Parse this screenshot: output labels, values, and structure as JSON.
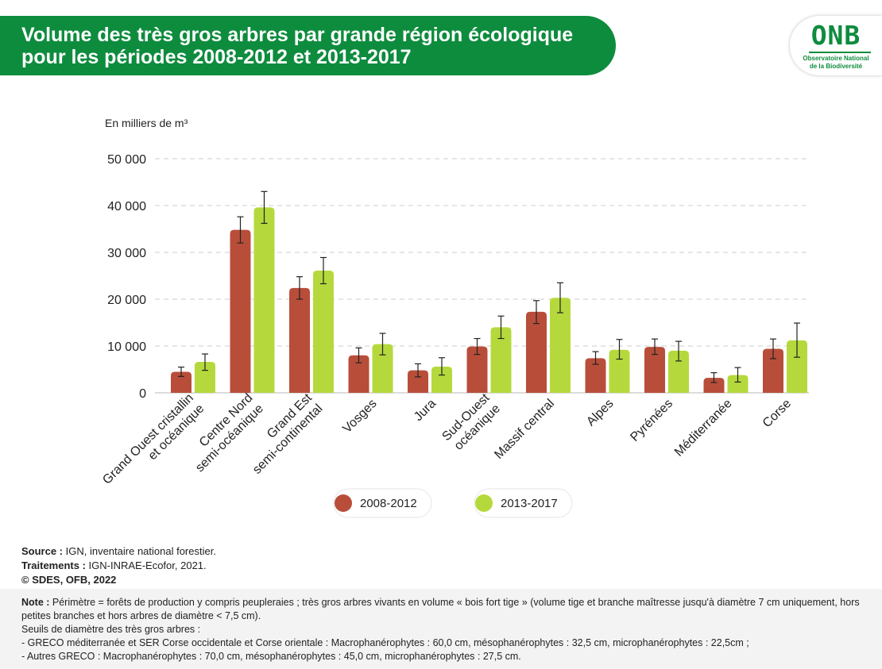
{
  "header": {
    "title_line1": "Volume des très gros arbres par grande région écologique",
    "title_line2": "pour les périodes 2008-2012 et 2013-2017",
    "logo_main": "ONB",
    "logo_sub1": "Observatoire National",
    "logo_sub2": "de la Biodiversité"
  },
  "colors": {
    "banner": "#0e8c3e",
    "series_2008": "#b84e3a",
    "series_2013": "#b5d93c"
  },
  "chart_data": {
    "type": "bar",
    "title": "Volume des très gros arbres par grande région écologique pour les périodes 2008-2012 et 2013-2017",
    "ylabel": "En milliers de m³",
    "xlabel": "",
    "ylim": [
      0,
      50000
    ],
    "yticks": [
      0,
      10000,
      20000,
      30000,
      40000,
      50000
    ],
    "ytick_labels": [
      "0",
      "10 000",
      "20 000",
      "30 000",
      "40 000",
      "50 000"
    ],
    "grid": true,
    "legend_position": "bottom",
    "categories": [
      [
        "Grand Ouest cristallin",
        "et océanique"
      ],
      [
        "Centre Nord",
        "semi-océanique"
      ],
      [
        "Grand Est",
        "semi-continental"
      ],
      [
        "Vosges"
      ],
      [
        "Jura"
      ],
      [
        "Sud-Ouest",
        "océanique"
      ],
      [
        "Massif central"
      ],
      [
        "Alpes"
      ],
      [
        "Pyrénées"
      ],
      [
        "Méditerranée"
      ],
      [
        "Corse"
      ]
    ],
    "series": [
      {
        "name": "2008-2012",
        "color": "#b84e3a",
        "values": [
          4500,
          34800,
          22400,
          8000,
          4800,
          9900,
          17300,
          7400,
          9800,
          3200,
          9400
        ],
        "err_low": [
          3500,
          32000,
          20000,
          6400,
          3400,
          8200,
          14800,
          6100,
          8200,
          2200,
          7300
        ],
        "err_high": [
          5500,
          37600,
          24800,
          9600,
          6200,
          11600,
          19700,
          8800,
          11500,
          4300,
          11500
        ]
      },
      {
        "name": "2013-2017",
        "color": "#b5d93c",
        "values": [
          6600,
          39600,
          26100,
          10400,
          5600,
          14000,
          20300,
          9200,
          9000,
          3800,
          11200
        ],
        "err_low": [
          4800,
          36200,
          23300,
          8100,
          3800,
          11600,
          17100,
          7200,
          6800,
          2300,
          7600
        ],
        "err_high": [
          8300,
          43000,
          28900,
          12700,
          7500,
          16400,
          23500,
          11400,
          11000,
          5400,
          14900
        ]
      }
    ]
  },
  "footer": {
    "source_label": "Source :",
    "source_text": " IGN, inventaire national forestier.",
    "treatment_label": "Traitements :",
    "treatment_text": " IGN-INRAE-Ecofor, 2021.",
    "copyright": "© SDES, OFB, 2022",
    "note_label": "Note :",
    "note_text": " Périmètre = forêts de production y compris peupleraies ; très gros arbres vivants en volume « bois fort tige » (volume tige et branche maîtresse jusqu'à diamètre 7 cm uniquement, hors petites branches et hors arbres de diamètre < 7,5 cm).",
    "note_line2": "Seuils de diamètre des très gros arbres :",
    "note_line3": "- GRECO méditerranée et SER Corse occidentale et Corse orientale : Macrophanérophytes : 60,0 cm, mésophanérophytes : 32,5 cm, microphanérophytes : 22,5cm ;",
    "note_line4": "- Autres GRECO : Macrophanérophytes : 70,0 cm, mésophanérophytes : 45,0 cm, microphanérophytes : 27,5 cm."
  }
}
